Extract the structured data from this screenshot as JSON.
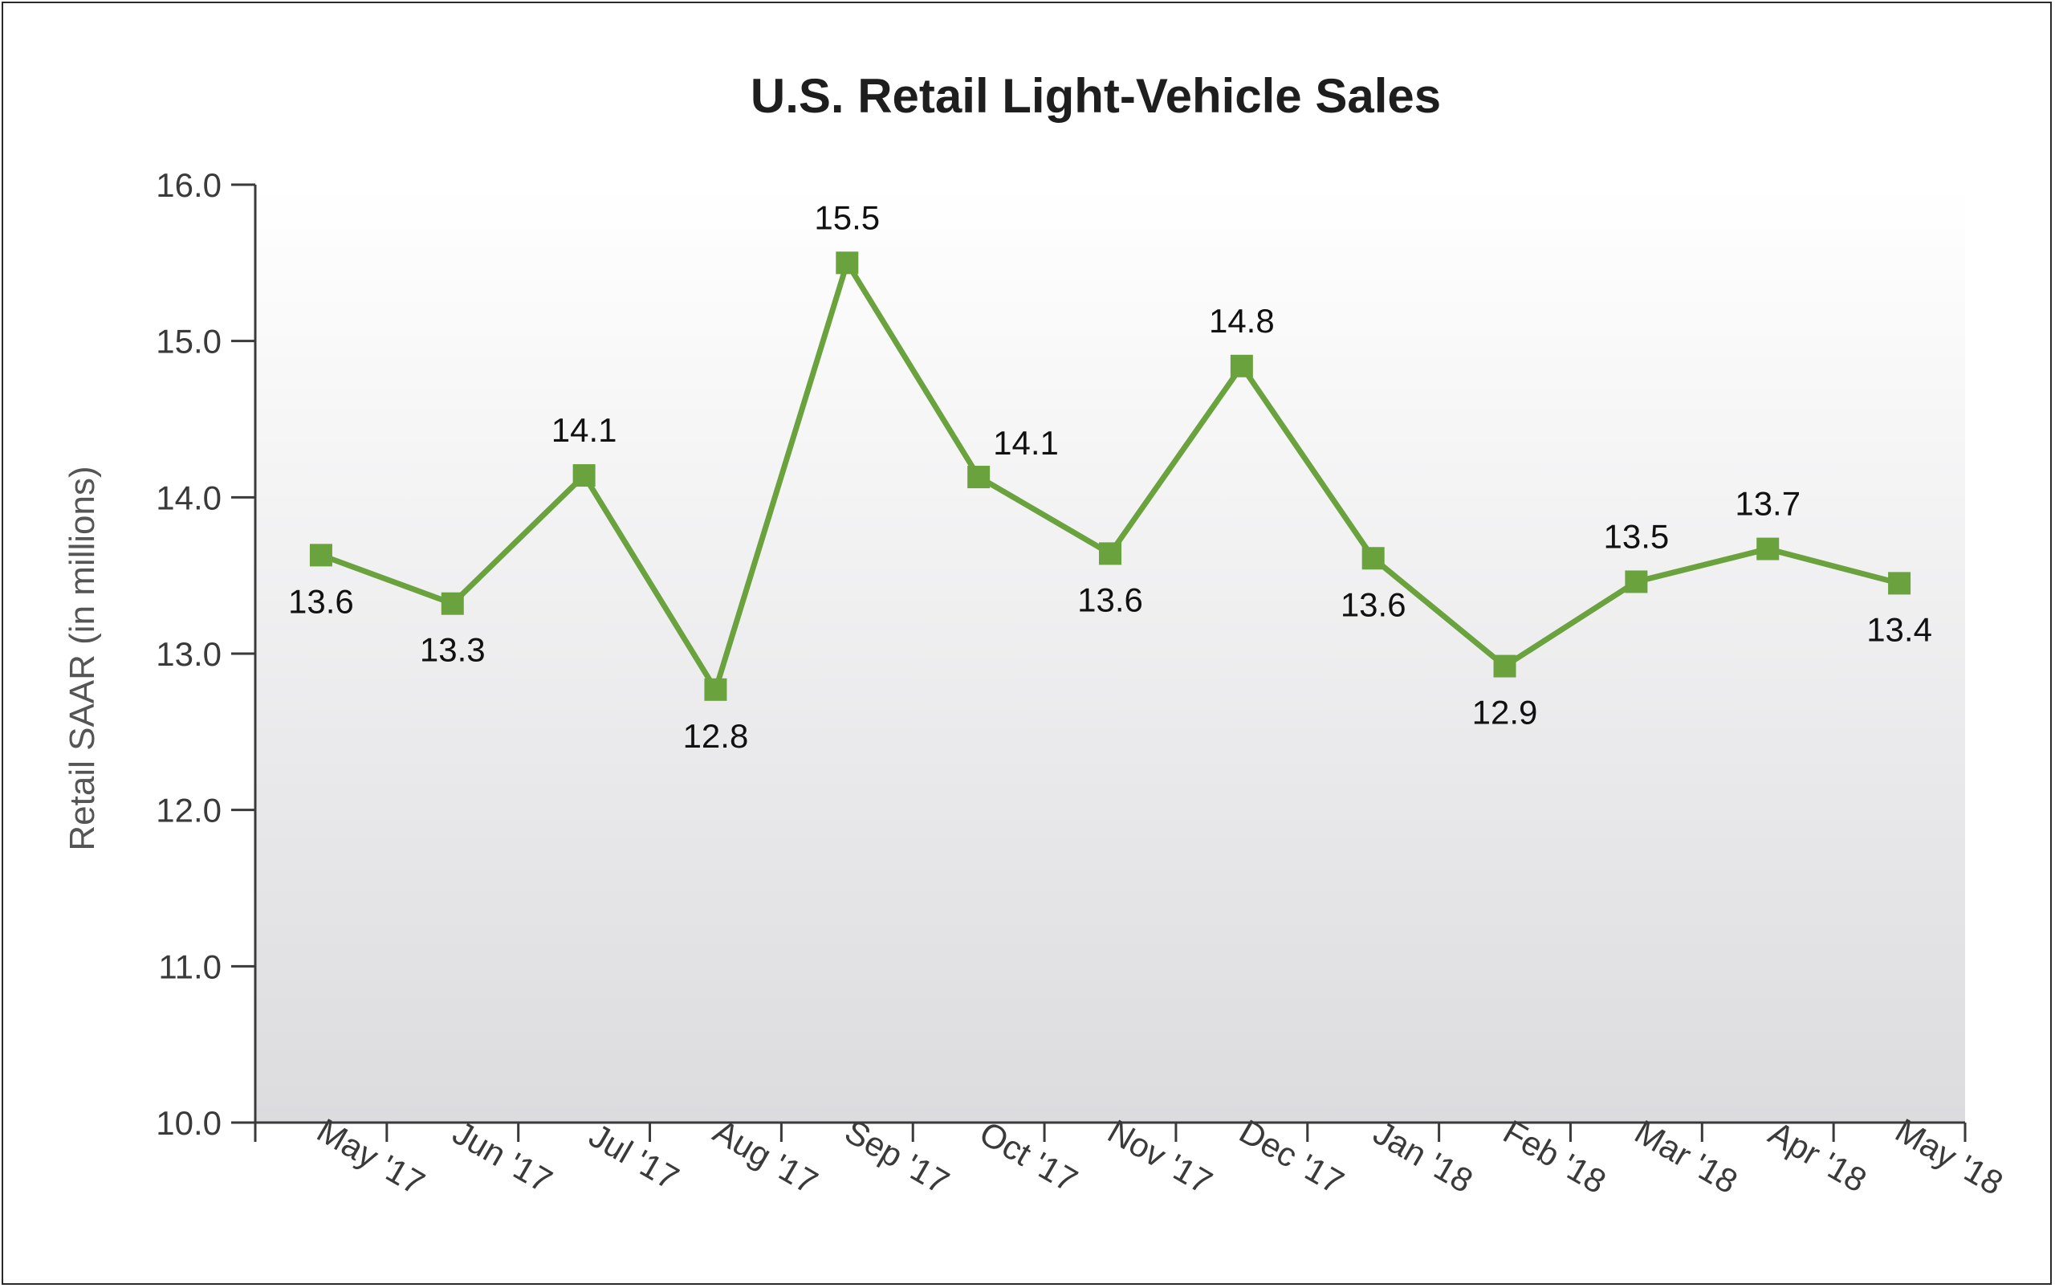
{
  "chart_data": {
    "type": "line",
    "title": "U.S. Retail Light-Vehicle Sales",
    "ylabel": "Retail SAAR (in millions)",
    "xlabel": "",
    "categories": [
      "May '17",
      "Jun '17",
      "Jul '17",
      "Aug '17",
      "Sep '17",
      "Oct '17",
      "Nov '17",
      "Dec '17",
      "Jan '18",
      "Feb '18",
      "Mar '18",
      "Apr '18",
      "May '18"
    ],
    "series": [
      {
        "values": [
          13.63,
          13.32,
          14.14,
          12.77,
          15.5,
          14.13,
          13.64,
          14.84,
          13.61,
          12.92,
          13.46,
          13.67,
          13.45
        ],
        "labels": [
          "13.6",
          "13.3",
          "14.1",
          "12.8",
          "15.5",
          "14.1",
          "13.6",
          "14.8",
          "13.6",
          "12.9",
          "13.5",
          "13.7",
          "13.4"
        ],
        "color": "#6aa23e"
      }
    ],
    "label_positions": [
      "below",
      "below",
      "above",
      "below",
      "above",
      "right",
      "below",
      "above",
      "below",
      "below",
      "above",
      "above",
      "below"
    ],
    "yticks": [
      "10.0",
      "11.0",
      "12.0",
      "13.0",
      "14.0",
      "15.0",
      "16.0"
    ],
    "ylim": [
      10,
      16
    ],
    "grid": false,
    "legend": "none",
    "background_gradient": [
      "#ffffff",
      "#dcdcdf"
    ]
  }
}
